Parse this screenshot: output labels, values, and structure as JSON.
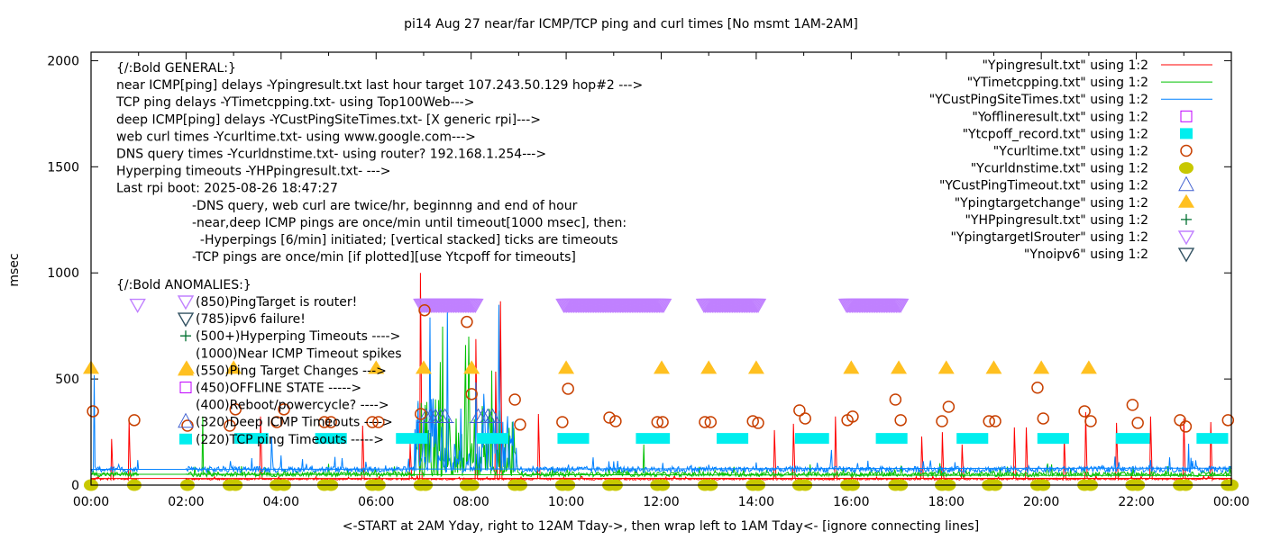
{
  "chart_data": {
    "type": "line",
    "title": "pi14 Aug 27  near/far ICMP/TCP ping and curl times [No msmt 1AM-2AM]",
    "xlabel": "<-START at 2AM Yday, right to 12AM Tday->, then wrap left to 1AM Tday<- [ignore connecting lines]",
    "ylabel": "msec",
    "xlim_hours": [
      0,
      24
    ],
    "ylim": [
      0,
      2040
    ],
    "yticks": [
      "0",
      "500",
      "1000",
      "1500",
      "2000"
    ],
    "ytick_values": [
      0,
      500,
      1000,
      1500,
      2000
    ],
    "xticks": [
      "00:00",
      "02:00",
      "04:00",
      "06:00",
      "08:00",
      "10:00",
      "12:00",
      "14:00",
      "16:00",
      "18:00",
      "20:00",
      "22:00",
      "00:00"
    ],
    "grid": false,
    "legend_placement": "top-right",
    "colors": {
      "ypingresult": "#ff0000",
      "ytimetcpping": "#00c000",
      "ycustpingsitetimes": "#0080ff",
      "yofflineresult": "#c000ff",
      "ytcpoff_record": "#00eeee",
      "ycurltime": "#c84000",
      "ycurldnstime": "#c8c800",
      "ycustpingtimeout": "#4060d0",
      "ypingtargetchange": "#ffc020",
      "yhppingresult": "#007030",
      "ypingtargetisrouter": "#c080ff",
      "ynoipv6": "#305060"
    },
    "legend": [
      {
        "key": "ypingresult",
        "label": "\"Ypingresult.txt\" using 1:2",
        "style": "line"
      },
      {
        "key": "ytimetcpping",
        "label": "\"YTimetcpping.txt\" using 1:2",
        "style": "line"
      },
      {
        "key": "ycustpingsitetimes",
        "label": "\"YCustPingSiteTimes.txt\" using 1:2",
        "style": "line"
      },
      {
        "key": "yofflineresult",
        "label": "\"Yofflineresult.txt\" using 1:2",
        "style": "open-square"
      },
      {
        "key": "ytcpoff_record",
        "label": "\"Ytcpoff_record.txt\" using 1:2",
        "style": "filled-square"
      },
      {
        "key": "ycurltime",
        "label": "\"Ycurltime.txt\" using 1:2",
        "style": "open-circle"
      },
      {
        "key": "ycurldnstime",
        "label": "\"Ycurldnstime.txt\" using 1:2",
        "style": "filled-circle"
      },
      {
        "key": "ycustpingtimeout",
        "label": "\"YCustPingTimeout.txt\" using 1:2",
        "style": "open-triangle-up"
      },
      {
        "key": "ypingtargetchange",
        "label": "\"Ypingtargetchange\" using 1:2",
        "style": "filled-triangle-up"
      },
      {
        "key": "yhppingresult",
        "label": "\"YHPpingresult.txt\" using 1:2",
        "style": "plus"
      },
      {
        "key": "ypingtargetisrouter",
        "label": "\"YpingtargetISrouter\" using 1:2",
        "style": "open-triangle-down"
      },
      {
        "key": "ynoipv6",
        "label": "\"Ynoipv6\" using 1:2",
        "style": "open-triangle-down"
      }
    ],
    "line_series": [
      {
        "key": "ypingresult",
        "baseline_ms": 28,
        "spikes": [
          [
            0.43,
            217
          ],
          [
            0.8,
            306
          ],
          [
            3.57,
            323
          ],
          [
            5.71,
            280
          ],
          [
            6.72,
            195
          ],
          [
            6.93,
            1000
          ],
          [
            8.1,
            688
          ],
          [
            8.52,
            535
          ],
          [
            8.62,
            866
          ],
          [
            9.41,
            335
          ],
          [
            14.38,
            259
          ],
          [
            14.78,
            289
          ],
          [
            15.67,
            323
          ],
          [
            17.48,
            229
          ],
          [
            17.91,
            250
          ],
          [
            18.33,
            191
          ],
          [
            19.43,
            272
          ],
          [
            19.68,
            272
          ],
          [
            20.49,
            225
          ],
          [
            20.93,
            344
          ],
          [
            21.58,
            293
          ],
          [
            22.3,
            323
          ],
          [
            23.0,
            314
          ],
          [
            23.56,
            297
          ]
        ]
      },
      {
        "key": "ytimetcpping",
        "baseline_ms": 50,
        "spikes": [
          [
            2.35,
            323
          ],
          [
            5.0,
            100
          ],
          [
            7.03,
            378
          ],
          [
            7.35,
            580
          ],
          [
            7.4,
            747
          ],
          [
            7.88,
            660
          ],
          [
            7.95,
            700
          ],
          [
            8.44,
            540
          ],
          [
            8.72,
            238
          ],
          [
            11.63,
            191
          ]
        ]
      },
      {
        "key": "ycustpingsitetimes",
        "baseline_ms": 72,
        "spikes": [
          [
            0.06,
            518
          ],
          [
            3.8,
            229
          ],
          [
            7.13,
            790
          ],
          [
            7.2,
            408
          ],
          [
            7.5,
            845
          ],
          [
            8.1,
            484
          ],
          [
            8.27,
            430
          ],
          [
            8.58,
            850
          ],
          [
            15.58,
            166
          ],
          [
            23.1,
            195
          ]
        ]
      }
    ],
    "ycurltime": [
      [
        0.04,
        348
      ],
      [
        0.91,
        306
      ],
      [
        2.03,
        280
      ],
      [
        2.92,
        280
      ],
      [
        3.04,
        357
      ],
      [
        3.91,
        297
      ],
      [
        4.06,
        357
      ],
      [
        4.91,
        297
      ],
      [
        5.05,
        297
      ],
      [
        5.92,
        297
      ],
      [
        6.05,
        297
      ],
      [
        6.94,
        335
      ],
      [
        7.02,
        824
      ],
      [
        7.91,
        769
      ],
      [
        8.01,
        429
      ],
      [
        8.92,
        403
      ],
      [
        9.03,
        285
      ],
      [
        9.92,
        297
      ],
      [
        10.04,
        454
      ],
      [
        10.91,
        318
      ],
      [
        11.04,
        301
      ],
      [
        11.92,
        297
      ],
      [
        12.03,
        297
      ],
      [
        12.92,
        297
      ],
      [
        13.04,
        297
      ],
      [
        13.93,
        301
      ],
      [
        14.04,
        293
      ],
      [
        14.91,
        352
      ],
      [
        15.03,
        314
      ],
      [
        15.92,
        306
      ],
      [
        16.03,
        323
      ],
      [
        16.93,
        403
      ],
      [
        17.04,
        306
      ],
      [
        17.91,
        301
      ],
      [
        18.05,
        369
      ],
      [
        18.9,
        301
      ],
      [
        19.03,
        301
      ],
      [
        19.92,
        459
      ],
      [
        20.04,
        314
      ],
      [
        20.91,
        348
      ],
      [
        21.04,
        301
      ],
      [
        21.92,
        378
      ],
      [
        22.03,
        293
      ],
      [
        22.92,
        306
      ],
      [
        23.04,
        276
      ],
      [
        23.93,
        306
      ]
    ],
    "ycurldnstime": [
      [
        0.0,
        0
      ],
      [
        0.91,
        0
      ],
      [
        2.03,
        0
      ],
      [
        2.92,
        0
      ],
      [
        3.04,
        0
      ],
      [
        3.91,
        0
      ],
      [
        4.06,
        0
      ],
      [
        4.91,
        0
      ],
      [
        5.05,
        0
      ],
      [
        5.92,
        0
      ],
      [
        6.05,
        0
      ],
      [
        6.94,
        0
      ],
      [
        7.04,
        0
      ],
      [
        7.91,
        0
      ],
      [
        8.02,
        0
      ],
      [
        8.92,
        0
      ],
      [
        9.03,
        0
      ],
      [
        9.92,
        0
      ],
      [
        10.04,
        0
      ],
      [
        10.91,
        0
      ],
      [
        11.04,
        0
      ],
      [
        11.92,
        0
      ],
      [
        12.03,
        0
      ],
      [
        12.92,
        0
      ],
      [
        13.04,
        0
      ],
      [
        13.93,
        0
      ],
      [
        14.04,
        0
      ],
      [
        14.91,
        0
      ],
      [
        15.03,
        0
      ],
      [
        15.92,
        0
      ],
      [
        16.03,
        0
      ],
      [
        16.93,
        0
      ],
      [
        17.04,
        0
      ],
      [
        17.91,
        0
      ],
      [
        18.05,
        0
      ],
      [
        18.9,
        0
      ],
      [
        19.03,
        0
      ],
      [
        19.92,
        0
      ],
      [
        20.04,
        0
      ],
      [
        20.91,
        0
      ],
      [
        21.04,
        0
      ],
      [
        21.92,
        0
      ],
      [
        22.03,
        0
      ],
      [
        22.92,
        0
      ],
      [
        23.04,
        0
      ],
      [
        23.93,
        0
      ],
      [
        24.0,
        0
      ]
    ],
    "ypingtargetchange": [
      [
        0,
        550
      ],
      [
        2.01,
        550
      ],
      [
        3.0,
        550
      ],
      [
        6.0,
        550
      ],
      [
        7.0,
        550
      ],
      [
        8.01,
        550
      ],
      [
        10.0,
        550
      ],
      [
        12.01,
        550
      ],
      [
        13.0,
        550
      ],
      [
        14.0,
        550
      ],
      [
        16.0,
        550
      ],
      [
        17.0,
        550
      ],
      [
        18.0,
        550
      ],
      [
        19.0,
        550
      ],
      [
        20.0,
        550
      ],
      [
        21.0,
        550
      ]
    ],
    "ytcpoff_record_ranges": [
      [
        3.15,
        3.6
      ],
      [
        4.85,
        5.25
      ],
      [
        6.55,
        6.95
      ],
      [
        8.25,
        8.65
      ],
      [
        9.95,
        10.35
      ],
      [
        11.6,
        12.05
      ],
      [
        13.3,
        13.7
      ],
      [
        14.95,
        15.4
      ],
      [
        16.65,
        17.05
      ],
      [
        18.35,
        18.75
      ],
      [
        20.05,
        20.45
      ],
      [
        21.7,
        22.15
      ],
      [
        23.4,
        23.8
      ]
    ],
    "ytcpoff_value": 220,
    "ypingtargetisrouter_ranges": [
      [
        0.98,
        0.98
      ],
      [
        6.95,
        8.1
      ],
      [
        9.95,
        12.05
      ],
      [
        12.9,
        14.05
      ],
      [
        15.9,
        17.05
      ]
    ],
    "ypingtargetisrouter_value": 850,
    "ycustpingtimeout": [
      [
        7.05,
        320
      ],
      [
        7.15,
        320
      ],
      [
        7.25,
        320
      ],
      [
        7.35,
        320
      ],
      [
        7.45,
        320
      ],
      [
        8.15,
        320
      ],
      [
        8.25,
        320
      ],
      [
        8.35,
        320
      ],
      [
        8.45,
        320
      ]
    ]
  },
  "annotations": {
    "general": [
      "{/:Bold GENERAL:}",
      "near ICMP[ping] delays -Ypingresult.txt last hour target 107.243.50.129 hop#2 --->",
      "TCP ping delays -YTimetcpping.txt- using Top100Web--->",
      "deep ICMP[ping] delays -YCustPingSiteTimes.txt- [X generic rpi]--->",
      "web curl times -Ycurltime.txt- using www.google.com--->",
      "DNS query times -Ycurldnstime.txt- using router? 192.168.1.254--->",
      "Hyperping timeouts -YHPpingresult.txt- --->",
      "Last rpi boot: 2025-08-26 18:47:27"
    ],
    "notes": [
      "-DNS query, web curl are twice/hr, beginnng and end of hour",
      "-near,deep ICMP pings are once/min until timeout[1000 msec], then:",
      "  -Hyperpings [6/min] initiated; [vertical stacked] ticks are timeouts",
      "-TCP pings are once/min [if plotted][use Ytcpoff for timeouts]"
    ],
    "anomalies_header": "{/:Bold ANOMALIES:}",
    "anomalies": [
      {
        "key": "ypingtargetisrouter",
        "marker": "open-triangle-down",
        "text": "(850)PingTarget is router!"
      },
      {
        "key": "ynoipv6",
        "marker": "open-triangle-down",
        "text": "(785)ipv6 failure!"
      },
      {
        "key": "yhppingresult",
        "marker": "plus",
        "text": "(500+)Hyperping Timeouts ---->"
      },
      {
        "key": "",
        "marker": "none",
        "text": "(1000)Near ICMP Timeout spikes"
      },
      {
        "key": "ypingtargetchange",
        "marker": "filled-triangle-up",
        "text": "(550)Ping Target Changes --->"
      },
      {
        "key": "yofflineresult",
        "marker": "open-square",
        "text": "(450)OFFLINE STATE ----->"
      },
      {
        "key": "",
        "marker": "none",
        "text": "(400)Reboot/powercycle? ---->"
      },
      {
        "key": "ycustpingtimeout",
        "marker": "open-triangle-up",
        "text": "(320)Deep ICMP Timeouts ---->"
      },
      {
        "key": "ytcpoff_record",
        "marker": "filled-square",
        "text": "(220)TCP ping Timeouts ----->"
      }
    ]
  }
}
